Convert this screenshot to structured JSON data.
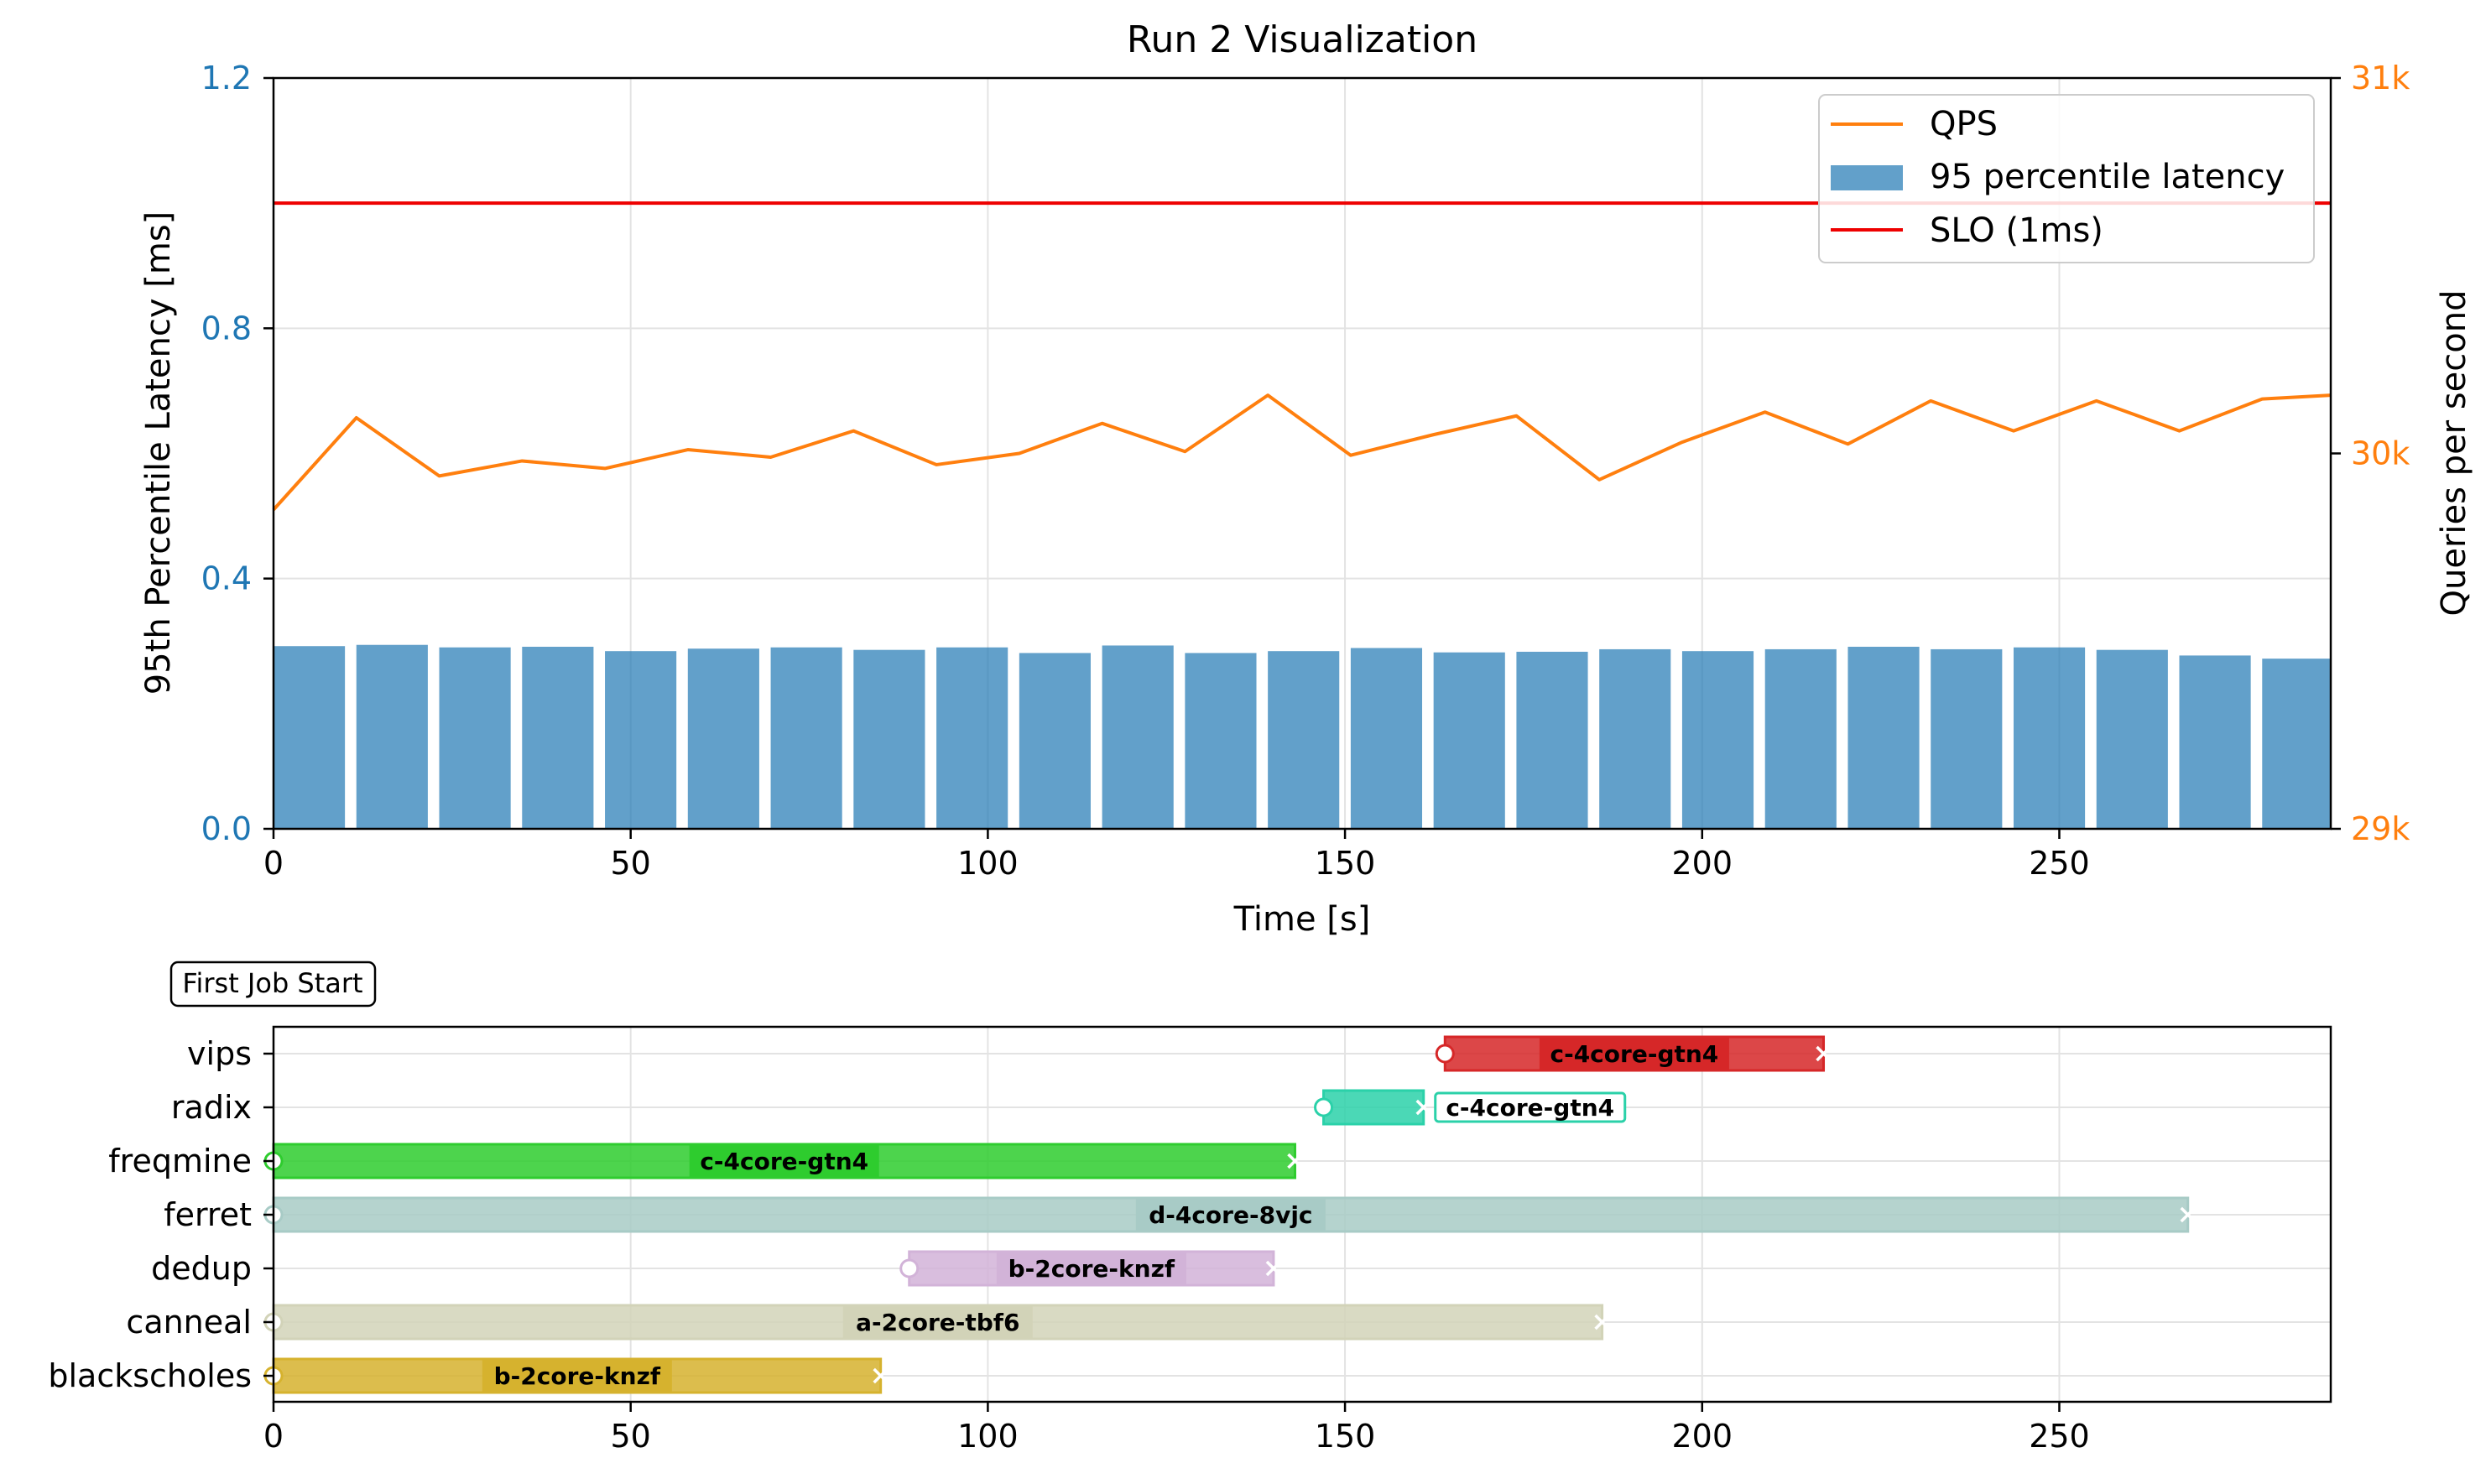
{
  "chart_data": [
    {
      "type": "bar",
      "title": "Run 2 Visualization",
      "xlabel": "Time [s]",
      "ylabel": "95th Percentile Latency [ms]",
      "ylabel_right": "Queries per second",
      "xlim": [
        0,
        288
      ],
      "ylim": [
        0,
        1.2
      ],
      "ylim_right": [
        29000,
        31000
      ],
      "x_ticks": [
        0,
        50,
        100,
        150,
        200,
        250
      ],
      "y_ticks": [
        0.0,
        0.4,
        0.8,
        1.2
      ],
      "y_tick_labels": [
        "0.0",
        "0.4",
        "0.8",
        "1.2"
      ],
      "y_right_ticks": [
        29000,
        30000,
        31000
      ],
      "y_right_tick_labels": [
        "29k",
        "30k",
        "31k"
      ],
      "grid": true,
      "legend_position": "top-right",
      "legend": [
        {
          "label": "QPS",
          "kind": "line",
          "color": "#ff7f0e"
        },
        {
          "label": "95 percentile latency",
          "kind": "bar",
          "color": "#1f77b4"
        },
        {
          "label": "SLO (1ms)",
          "kind": "line",
          "color": "#ee0000"
        }
      ],
      "latency_bars": {
        "name": "95 percentile latency",
        "color": "#1f77b4",
        "bar_width_s": 10,
        "x": [
          0,
          11.6,
          23.2,
          34.8,
          46.4,
          58,
          69.6,
          81.2,
          92.8,
          104.4,
          116,
          127.6,
          139.2,
          150.8,
          162.4,
          174,
          185.6,
          197.2,
          208.8,
          220.4,
          232,
          243.6,
          255.2,
          266.8,
          278.4
        ],
        "values": [
          0.292,
          0.294,
          0.29,
          0.291,
          0.284,
          0.288,
          0.29,
          0.286,
          0.29,
          0.281,
          0.293,
          0.281,
          0.284,
          0.289,
          0.282,
          0.283,
          0.287,
          0.284,
          0.287,
          0.291,
          0.287,
          0.29,
          0.286,
          0.277,
          0.272
        ]
      },
      "qps_line": {
        "name": "QPS",
        "color": "#ff7f0e",
        "x": [
          0,
          11.6,
          23.2,
          34.8,
          46.4,
          58,
          69.6,
          81.2,
          92.8,
          104.4,
          116,
          127.6,
          139.2,
          150.8,
          162.4,
          174,
          185.6,
          197.2,
          208.8,
          220.4,
          232,
          243.6,
          255.2,
          266.8,
          278.4,
          288
        ],
        "values": [
          29850,
          30095,
          29940,
          29980,
          29960,
          30010,
          29990,
          30060,
          29970,
          30000,
          30080,
          30005,
          30155,
          29995,
          30050,
          30100,
          29930,
          30030,
          30110,
          30025,
          30140,
          30060,
          30140,
          30060,
          30145,
          30155
        ]
      },
      "slo_line": {
        "name": "SLO (1ms)",
        "color": "#ee0000",
        "value": 1.0
      }
    },
    {
      "type": "gantt",
      "annotation": "First Job Start",
      "xlim": [
        0,
        288
      ],
      "x_ticks": [
        0,
        50,
        100,
        150,
        200,
        250
      ],
      "grid": true,
      "jobs": [
        {
          "name": "vips",
          "start": 164,
          "end": 217,
          "label": "c-4core-gtn4",
          "color": "#d62728",
          "label_inside": true
        },
        {
          "name": "radix",
          "start": 147,
          "end": 161,
          "label": "c-4core-gtn4",
          "color": "#2bd1a9",
          "label_inside": false
        },
        {
          "name": "freqmine",
          "start": 0,
          "end": 143,
          "label": "c-4core-gtn4",
          "color": "#2ecc2e",
          "label_inside": true
        },
        {
          "name": "ferret",
          "start": 0,
          "end": 268,
          "label": "d-4core-8vjc",
          "color": "#a8cbc6",
          "label_inside": true
        },
        {
          "name": "dedup",
          "start": 89,
          "end": 140,
          "label": "b-2core-knzf",
          "color": "#d2b3d8",
          "label_inside": true
        },
        {
          "name": "canneal",
          "start": 0,
          "end": 186,
          "label": "a-2core-tbf6",
          "color": "#d2d3b8",
          "label_inside": true
        },
        {
          "name": "blackscholes",
          "start": 0,
          "end": 85,
          "label": "b-2core-knzf",
          "color": "#d6b22e",
          "label_inside": true
        }
      ]
    }
  ]
}
